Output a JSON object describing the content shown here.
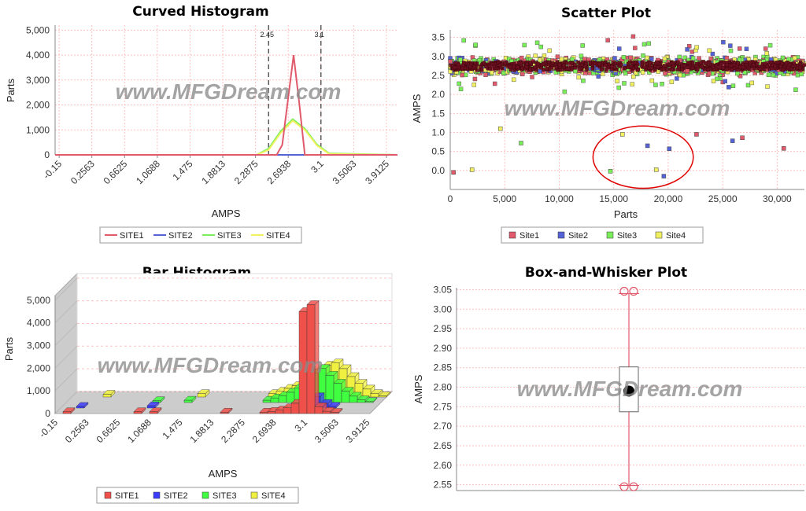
{
  "watermark": "www.MFGDream.com",
  "colors": {
    "site1": "#e05a6c",
    "site2": "#5563d6",
    "site3": "#7bef5a",
    "site4": "#f0f060",
    "bar_site1": "#f0504a",
    "bar_site2": "#3c3cff",
    "bar_site3": "#40ff40",
    "bar_site4": "#f0f040",
    "grid": "#ffc0c0",
    "axis": "#888888",
    "circle": "#e00000"
  },
  "chart_data": [
    {
      "id": "curved",
      "type": "line",
      "title": "Curved Histogram",
      "xlabel": "AMPS",
      "ylabel": "Parts",
      "x_ticks": [
        "-0.15",
        "0.2563",
        "0.6625",
        "1.0688",
        "1.475",
        "1.8813",
        "2.2875",
        "2.6938",
        "3.1",
        "3.5063",
        "3.9125"
      ],
      "xlim": [
        -0.2,
        4.05
      ],
      "ylim": [
        0,
        5200
      ],
      "y_ticks": [
        "0",
        "1,000",
        "2,000",
        "3,000",
        "4,000",
        "5,000"
      ],
      "y_tick_values": [
        0,
        1000,
        2000,
        3000,
        4000,
        5000
      ],
      "limit_lines": [
        {
          "x": 2.45,
          "label": "2.45"
        },
        {
          "x": 3.1,
          "label": "3.1"
        }
      ],
      "series": [
        {
          "name": "SITE1",
          "color": "site1",
          "x": [
            -0.2,
            2.55,
            2.62,
            2.69,
            2.76,
            2.83,
            2.9,
            4.05
          ],
          "y": [
            0,
            0,
            400,
            2200,
            4000,
            2100,
            0,
            0
          ]
        },
        {
          "name": "SITE2",
          "color": "site2",
          "x": [
            -0.2,
            4.05
          ],
          "y": [
            0,
            0
          ]
        },
        {
          "name": "SITE3",
          "color": "site3",
          "x": [
            -0.2,
            2.3,
            2.45,
            2.6,
            2.75,
            2.9,
            3.05,
            3.2,
            4.05
          ],
          "y": [
            0,
            0,
            250,
            950,
            1430,
            1050,
            420,
            60,
            0
          ]
        },
        {
          "name": "SITE4",
          "color": "site4",
          "x": [
            -0.2,
            2.3,
            2.45,
            2.6,
            2.75,
            2.9,
            3.05,
            3.2,
            4.05
          ],
          "y": [
            0,
            0,
            200,
            880,
            1370,
            1000,
            380,
            40,
            0
          ]
        }
      ],
      "legend": "bottom"
    },
    {
      "id": "scatter",
      "type": "scatter",
      "title": "Scatter Plot",
      "xlabel": "Parts",
      "ylabel": "AMPS",
      "xlim": [
        0,
        32500
      ],
      "ylim": [
        -0.5,
        3.7
      ],
      "x_ticks": [
        "0",
        "5,000",
        "10,000",
        "15,000",
        "20,000",
        "25,000",
        "30,000"
      ],
      "x_tick_values": [
        0,
        5000,
        10000,
        15000,
        20000,
        25000,
        30000
      ],
      "y_ticks": [
        "0.0",
        "0.5",
        "1.0",
        "1.5",
        "2.0",
        "2.5",
        "3.0",
        "3.5"
      ],
      "y_tick_values": [
        0,
        0.5,
        1,
        1.5,
        2,
        2.5,
        3,
        3.5
      ],
      "band": {
        "x_range": [
          0,
          32500
        ],
        "y_center": 2.75,
        "y_spread": 0.3
      },
      "outliers": [
        {
          "series": "Site1",
          "x": 300,
          "y": -0.05
        },
        {
          "series": "Site4",
          "x": 2000,
          "y": 0.02
        },
        {
          "series": "Site4",
          "x": 4600,
          "y": 1.1
        },
        {
          "series": "Site3",
          "x": 6500,
          "y": 0.72
        },
        {
          "series": "Site3",
          "x": 14700,
          "y": -0.02
        },
        {
          "series": "Site4",
          "x": 15800,
          "y": 0.95
        },
        {
          "series": "Site2",
          "x": 18100,
          "y": 0.65
        },
        {
          "series": "Site4",
          "x": 18900,
          "y": 0.02
        },
        {
          "series": "Site2",
          "x": 19600,
          "y": -0.15
        },
        {
          "series": "Site2",
          "x": 20100,
          "y": 0.57
        },
        {
          "series": "Site1",
          "x": 22600,
          "y": 0.95
        },
        {
          "series": "Site2",
          "x": 25900,
          "y": 0.78
        },
        {
          "series": "Site1",
          "x": 26800,
          "y": 0.86
        },
        {
          "series": "Site1",
          "x": 30600,
          "y": 0.58
        }
      ],
      "highlight_ellipse": {
        "cx": 17700,
        "cy": 0.35,
        "rx_parts": 4600,
        "ry_amps": 0.82
      },
      "series_names": [
        "Site1",
        "Site2",
        "Site3",
        "Site4"
      ],
      "legend": "bottom"
    },
    {
      "id": "bars",
      "type": "bar",
      "title": "Bar Histogram",
      "xlabel": "AMPS",
      "ylabel": "Parts",
      "x_ticks": [
        "-0.15",
        "0.2563",
        "0.6625",
        "1.0688",
        "1.475",
        "1.8813",
        "2.2875",
        "2.6938",
        "3.1",
        "3.5063",
        "3.9125"
      ],
      "bins": 40,
      "ylim": [
        0,
        5200
      ],
      "y_ticks": [
        "0",
        "1,000",
        "2,000",
        "3,000",
        "4,000",
        "5,000"
      ],
      "y_tick_values": [
        0,
        1000,
        2000,
        3000,
        4000,
        5000
      ],
      "series": [
        {
          "name": "SITE4",
          "color": "bar_site4",
          "values": [
            0,
            0,
            0,
            0,
            120,
            0,
            0,
            0,
            0,
            0,
            0,
            0,
            0,
            0,
            0,
            0,
            150,
            0,
            0,
            0,
            0,
            0,
            0,
            0,
            0,
            150,
            250,
            380,
            500,
            700,
            900,
            1200,
            1400,
            1500,
            1250,
            900,
            600,
            350,
            150,
            50
          ]
        },
        {
          "name": "SITE3",
          "color": "bar_site3",
          "values": [
            0,
            0,
            0,
            0,
            0,
            0,
            0,
            0,
            0,
            0,
            0,
            80,
            0,
            0,
            0,
            100,
            0,
            0,
            0,
            0,
            0,
            0,
            0,
            0,
            0,
            100,
            200,
            300,
            450,
            650,
            900,
            1300,
            1500,
            1200,
            850,
            500,
            280,
            120,
            40,
            0
          ]
        },
        {
          "name": "SITE2",
          "color": "bar_site2",
          "values": [
            0,
            0,
            70,
            0,
            0,
            0,
            0,
            0,
            0,
            0,
            0,
            100,
            0,
            0,
            0,
            0,
            0,
            0,
            0,
            0,
            0,
            0,
            0,
            0,
            0,
            0,
            0,
            0,
            0,
            0,
            0,
            0,
            500,
            200,
            80,
            0,
            0,
            0,
            0,
            0
          ]
        },
        {
          "name": "SITE1",
          "color": "bar_site1",
          "values": [
            0,
            80,
            0,
            0,
            0,
            0,
            0,
            0,
            0,
            0,
            80,
            0,
            80,
            0,
            0,
            0,
            0,
            0,
            0,
            0,
            0,
            60,
            0,
            0,
            0,
            0,
            60,
            90,
            150,
            250,
            450,
            4500,
            4800,
            300,
            100,
            50,
            0,
            0,
            0,
            0
          ]
        }
      ],
      "legend_order": [
        "SITE1",
        "SITE2",
        "SITE3",
        "SITE4"
      ],
      "legend": "bottom"
    },
    {
      "id": "box",
      "type": "box",
      "title": "Box-and-Whisker Plot",
      "ylabel": "AMPS",
      "ylim": [
        2.535,
        3.055
      ],
      "y_ticks": [
        "2.55",
        "2.60",
        "2.65",
        "2.70",
        "2.75",
        "2.80",
        "2.85",
        "2.90",
        "2.95",
        "3.00",
        "3.05"
      ],
      "y_tick_values": [
        2.55,
        2.6,
        2.65,
        2.7,
        2.75,
        2.8,
        2.85,
        2.9,
        2.95,
        3.0,
        3.05
      ],
      "whisker_low": 2.548,
      "q1": 2.737,
      "median": 2.79,
      "mean": 2.79,
      "q3": 2.852,
      "whisker_high": 3.04,
      "outliers_high": [
        3.05,
        3.05
      ],
      "outliers_low": [
        2.545,
        2.545
      ]
    }
  ]
}
